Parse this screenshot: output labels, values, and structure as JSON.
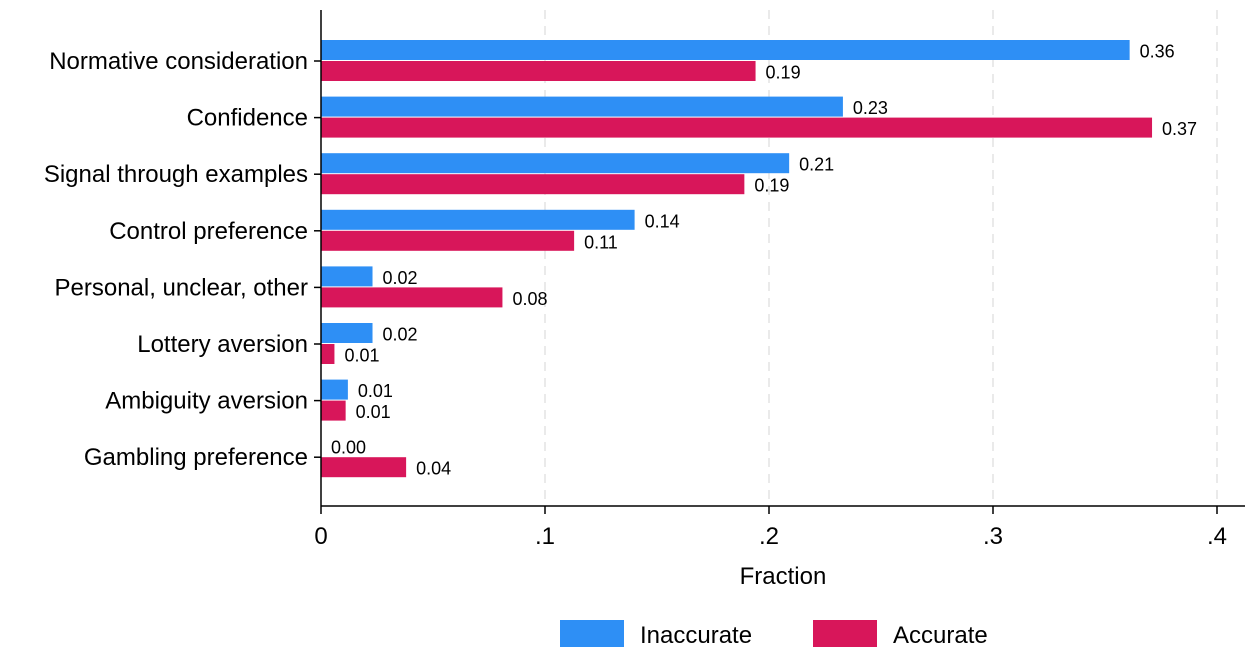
{
  "chart_data": {
    "type": "bar",
    "orientation": "horizontal",
    "title": "",
    "xlabel": "Fraction",
    "ylabel": "",
    "xlim": [
      0,
      0.41
    ],
    "xticks": [
      0,
      0.1,
      0.2,
      0.3,
      0.4
    ],
    "xtick_labels": [
      "0",
      ".1",
      ".2",
      ".3",
      ".4"
    ],
    "grid": true,
    "legend_position": "bottom",
    "categories": [
      "Normative consideration",
      "Confidence",
      "Signal through examples",
      "Control preference",
      "Personal, unclear, other",
      "Lottery aversion",
      "Ambiguity aversion",
      "Gambling preference"
    ],
    "series": [
      {
        "name": "Inaccurate",
        "color": "#2e8ff5",
        "values": [
          0.361,
          0.233,
          0.209,
          0.14,
          0.023,
          0.023,
          0.012,
          0.0
        ],
        "labels": [
          "0.36",
          "0.23",
          "0.21",
          "0.14",
          "0.02",
          "0.02",
          "0.01",
          "0.00"
        ]
      },
      {
        "name": "Accurate",
        "color": "#d8165a",
        "values": [
          0.194,
          0.371,
          0.189,
          0.113,
          0.081,
          0.006,
          0.011,
          0.038
        ],
        "labels": [
          "0.19",
          "0.37",
          "0.19",
          "0.11",
          "0.08",
          "0.01",
          "0.01",
          "0.04"
        ]
      }
    ]
  }
}
